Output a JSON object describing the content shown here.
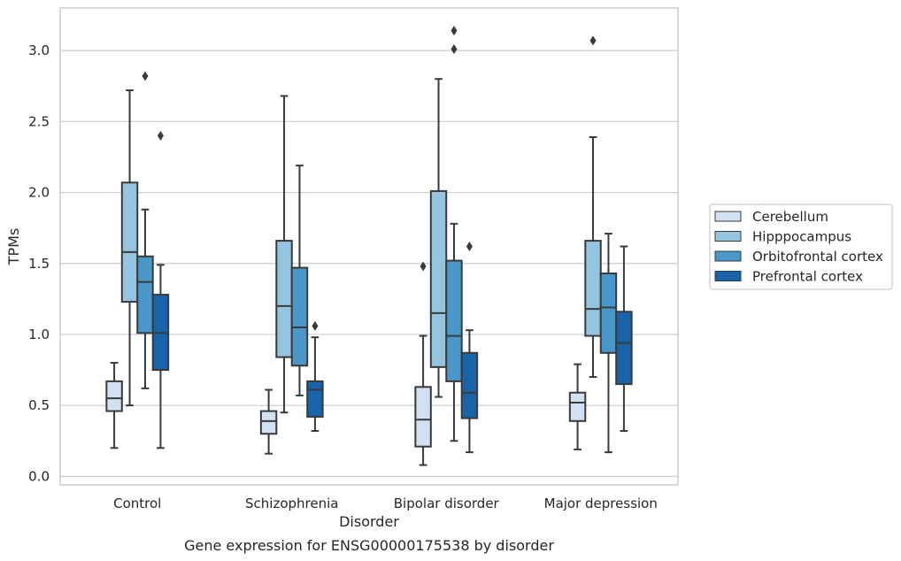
{
  "chart_data": {
    "type": "box",
    "title": "",
    "caption": "Gene expression for ENSG00000175538 by disorder",
    "xlabel": "Disorder",
    "ylabel": "TPMs",
    "ylim": [
      -0.06,
      3.3
    ],
    "yticks": [
      "0.0",
      "0.5",
      "1.0",
      "1.5",
      "2.0",
      "2.5",
      "3.0"
    ],
    "grid": "horizontal",
    "legend_position": "right",
    "categories": [
      "Control",
      "Schizophrenia",
      "Bipolar disorder",
      "Major depression"
    ],
    "series": [
      {
        "name": "Cerebellum",
        "color": "#d0e1f2",
        "boxes": [
          {
            "whislo": 0.2,
            "q1": 0.46,
            "med": 0.55,
            "q3": 0.67,
            "whishi": 0.8,
            "fliers": []
          },
          {
            "whislo": 0.16,
            "q1": 0.3,
            "med": 0.39,
            "q3": 0.46,
            "whishi": 0.61,
            "fliers": []
          },
          {
            "whislo": 0.08,
            "q1": 0.21,
            "med": 0.4,
            "q3": 0.63,
            "whishi": 0.99,
            "fliers": [
              1.48
            ]
          },
          {
            "whislo": 0.19,
            "q1": 0.39,
            "med": 0.52,
            "q3": 0.59,
            "whishi": 0.79,
            "fliers": []
          }
        ]
      },
      {
        "name": "Hipppocampus",
        "color": "#94c4df",
        "boxes": [
          {
            "whislo": 0.5,
            "q1": 1.23,
            "med": 1.58,
            "q3": 2.07,
            "whishi": 2.72,
            "fliers": []
          },
          {
            "whislo": 0.45,
            "q1": 0.84,
            "med": 1.2,
            "q3": 1.66,
            "whishi": 2.68,
            "fliers": []
          },
          {
            "whislo": 0.56,
            "q1": 0.77,
            "med": 1.15,
            "q3": 2.01,
            "whishi": 2.8,
            "fliers": []
          },
          {
            "whislo": 0.7,
            "q1": 0.99,
            "med": 1.18,
            "q3": 1.66,
            "whishi": 2.39,
            "fliers": [
              3.07
            ]
          }
        ]
      },
      {
        "name": "Orbitofrontal cortex",
        "color": "#4a98c9",
        "boxes": [
          {
            "whislo": 0.62,
            "q1": 1.01,
            "med": 1.37,
            "q3": 1.55,
            "whishi": 1.88,
            "fliers": [
              2.82
            ]
          },
          {
            "whislo": 0.57,
            "q1": 0.78,
            "med": 1.05,
            "q3": 1.47,
            "whishi": 2.19,
            "fliers": []
          },
          {
            "whislo": 0.25,
            "q1": 0.67,
            "med": 0.99,
            "q3": 1.52,
            "whishi": 1.78,
            "fliers": [
              3.01,
              3.14
            ]
          },
          {
            "whislo": 0.17,
            "q1": 0.87,
            "med": 1.19,
            "q3": 1.43,
            "whishi": 1.71,
            "fliers": []
          }
        ]
      },
      {
        "name": "Prefrontal cortex",
        "color": "#1764ab",
        "boxes": [
          {
            "whislo": 0.2,
            "q1": 0.75,
            "med": 1.01,
            "q3": 1.28,
            "whishi": 1.49,
            "fliers": [
              2.4
            ]
          },
          {
            "whislo": 0.32,
            "q1": 0.42,
            "med": 0.61,
            "q3": 0.67,
            "whishi": 0.98,
            "fliers": [
              1.06
            ]
          },
          {
            "whislo": 0.17,
            "q1": 0.41,
            "med": 0.59,
            "q3": 0.87,
            "whishi": 1.03,
            "fliers": [
              1.62
            ]
          },
          {
            "whislo": 0.32,
            "q1": 0.65,
            "med": 0.94,
            "q3": 1.16,
            "whishi": 1.62,
            "fliers": []
          }
        ]
      }
    ]
  }
}
